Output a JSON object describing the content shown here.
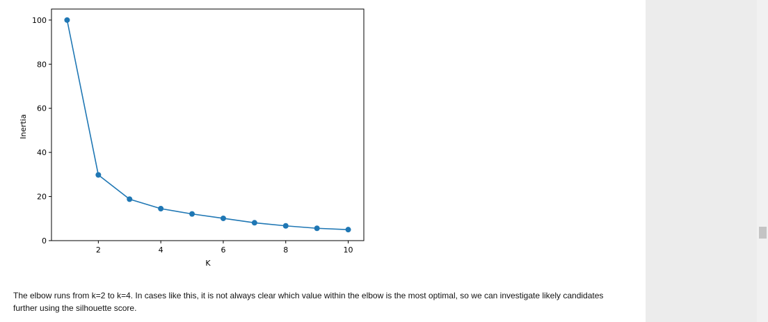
{
  "chart_data": {
    "type": "line",
    "x": [
      1,
      2,
      3,
      4,
      5,
      6,
      7,
      8,
      9,
      10
    ],
    "series": [
      {
        "values": [
          100,
          29.8,
          18.8,
          14.5,
          12.1,
          10.1,
          8.1,
          6.7,
          5.6,
          5.0
        ]
      }
    ],
    "xlabel": "K",
    "ylabel": "Inertia",
    "xlim": [
      0.5,
      10.5
    ],
    "ylim": [
      0,
      105
    ],
    "xticks": [
      2,
      4,
      6,
      8,
      10
    ],
    "yticks": [
      0,
      20,
      40,
      60,
      80,
      100
    ],
    "color": "#1f77b4",
    "marker": "circle",
    "grid": false
  },
  "caption": "The elbow runs from k=2 to k=4. In cases like this, it is not always clear which value within the elbow is the most optimal, so we can investigate likely candidates further using the silhouette score."
}
